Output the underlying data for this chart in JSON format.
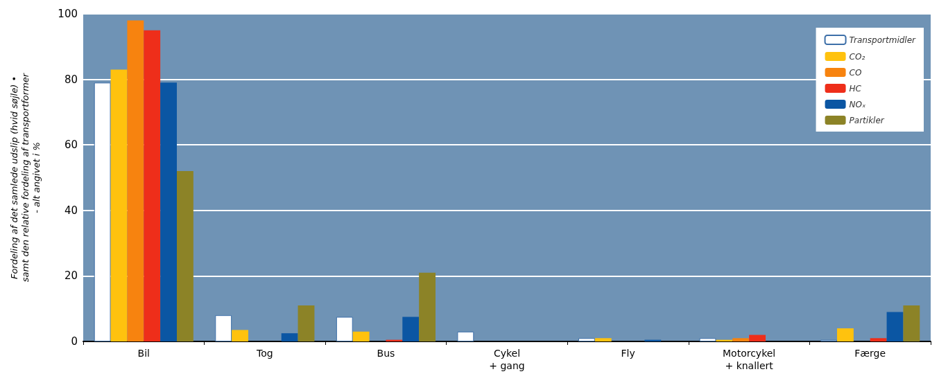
{
  "chart_data": {
    "type": "bar",
    "ylabel": "Fordeling af det samlede udslip (hvid søjle) •\nsamt den relative fordeling af transportformer\n- alt angivet i %",
    "categories": [
      "Bil",
      "Tog",
      "Bus",
      "Cykel\n+ gang",
      "Fly",
      "Motorcykel\n+ knallert",
      "Færge"
    ],
    "series": [
      {
        "name": "Transportmidler",
        "color": "#ffffff",
        "values": [
          79,
          8,
          7.5,
          3,
          1,
          1,
          0.5
        ]
      },
      {
        "name": "CO₂",
        "color": "#ffc20e",
        "values": [
          83,
          3.5,
          3,
          0,
          1,
          0.5,
          4
        ]
      },
      {
        "name": "CO",
        "color": "#f7830f",
        "values": [
          98,
          0,
          0,
          0,
          0,
          1,
          0
        ]
      },
      {
        "name": "HC",
        "color": "#ee2e1a",
        "values": [
          95,
          0,
          0.5,
          0,
          0,
          2,
          1
        ]
      },
      {
        "name": "NOₓ",
        "color": "#0b56a3",
        "values": [
          79,
          2.5,
          7.5,
          0,
          0.5,
          0,
          9
        ]
      },
      {
        "name": "Partikler",
        "color": "#8c8327",
        "values": [
          52,
          11,
          21,
          0,
          0,
          0,
          11
        ]
      }
    ],
    "ylim": [
      0,
      100
    ],
    "yticks": [
      0,
      20,
      40,
      60,
      80,
      100
    ],
    "grid": "y",
    "legend": "top right"
  }
}
